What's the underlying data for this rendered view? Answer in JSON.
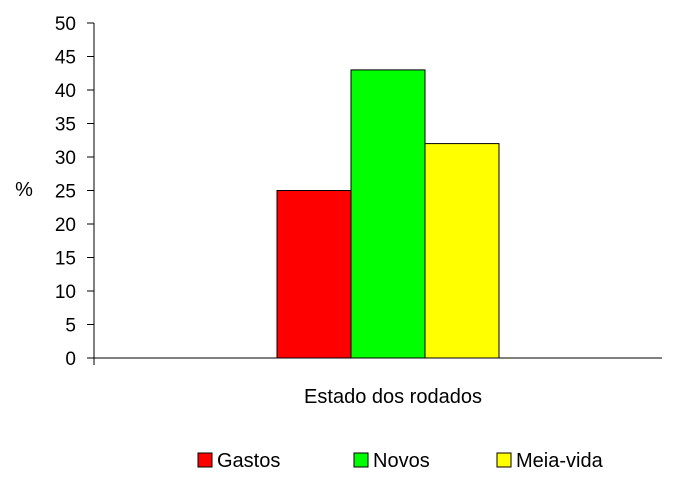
{
  "chart_data": {
    "type": "bar",
    "categories": [
      ""
    ],
    "series": [
      {
        "name": "Gastos",
        "values": [
          25
        ],
        "color": "#ff0000"
      },
      {
        "name": "Novos",
        "values": [
          43
        ],
        "color": "#00ff00"
      },
      {
        "name": "Meia-vida",
        "values": [
          32
        ],
        "color": "#ffff00"
      }
    ],
    "title": "",
    "xlabel": "Estado dos rodados",
    "ylabel": "%",
    "ylim": [
      0,
      50
    ],
    "yticks": [
      "0",
      "5",
      "10",
      "15",
      "20",
      "25",
      "30",
      "35",
      "40",
      "45",
      "50"
    ],
    "grid": false,
    "legend_position": "bottom"
  }
}
